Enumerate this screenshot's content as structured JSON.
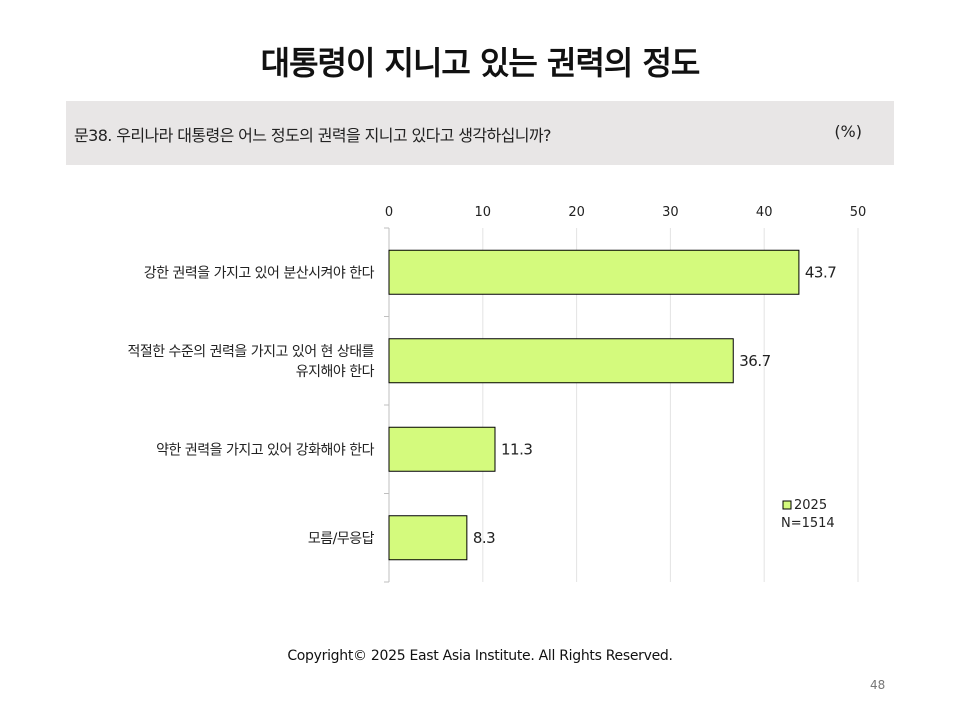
{
  "header": {
    "title": "대통령이 지니고 있는 권력의 정도",
    "question": "문38. 우리나라 대통령은 어느 정도의 권력을 지니고 있다고 생각하십니까?",
    "unit": "(%)"
  },
  "chart_data": {
    "type": "bar",
    "orientation": "horizontal",
    "categories": [
      [
        "강한 권력을 가지고 있어 분산시켜야 한다"
      ],
      [
        "적절한 수준의 권력을 가지고 있어 현 상태를",
        "유지해야 한다"
      ],
      [
        "약한 권력을 가지고 있어 강화해야 한다"
      ],
      [
        "모름/무응답"
      ]
    ],
    "series": [
      {
        "name": "2025",
        "values": [
          43.7,
          36.7,
          11.3,
          8.3
        ],
        "color": "#d4fa7d"
      }
    ],
    "value_labels": [
      "43.7",
      "36.7",
      "11.3",
      "8.3"
    ],
    "xlim": [
      0,
      50
    ],
    "xticks": [
      0,
      10,
      20,
      30,
      40,
      50
    ],
    "legend": {
      "label": "2025",
      "note": "N=1514",
      "position": "bottom-right"
    },
    "grid": true
  },
  "footer": {
    "copyright": "Copyright© 2025 East Asia Institute. All Rights Reserved.",
    "page_number": "48"
  }
}
